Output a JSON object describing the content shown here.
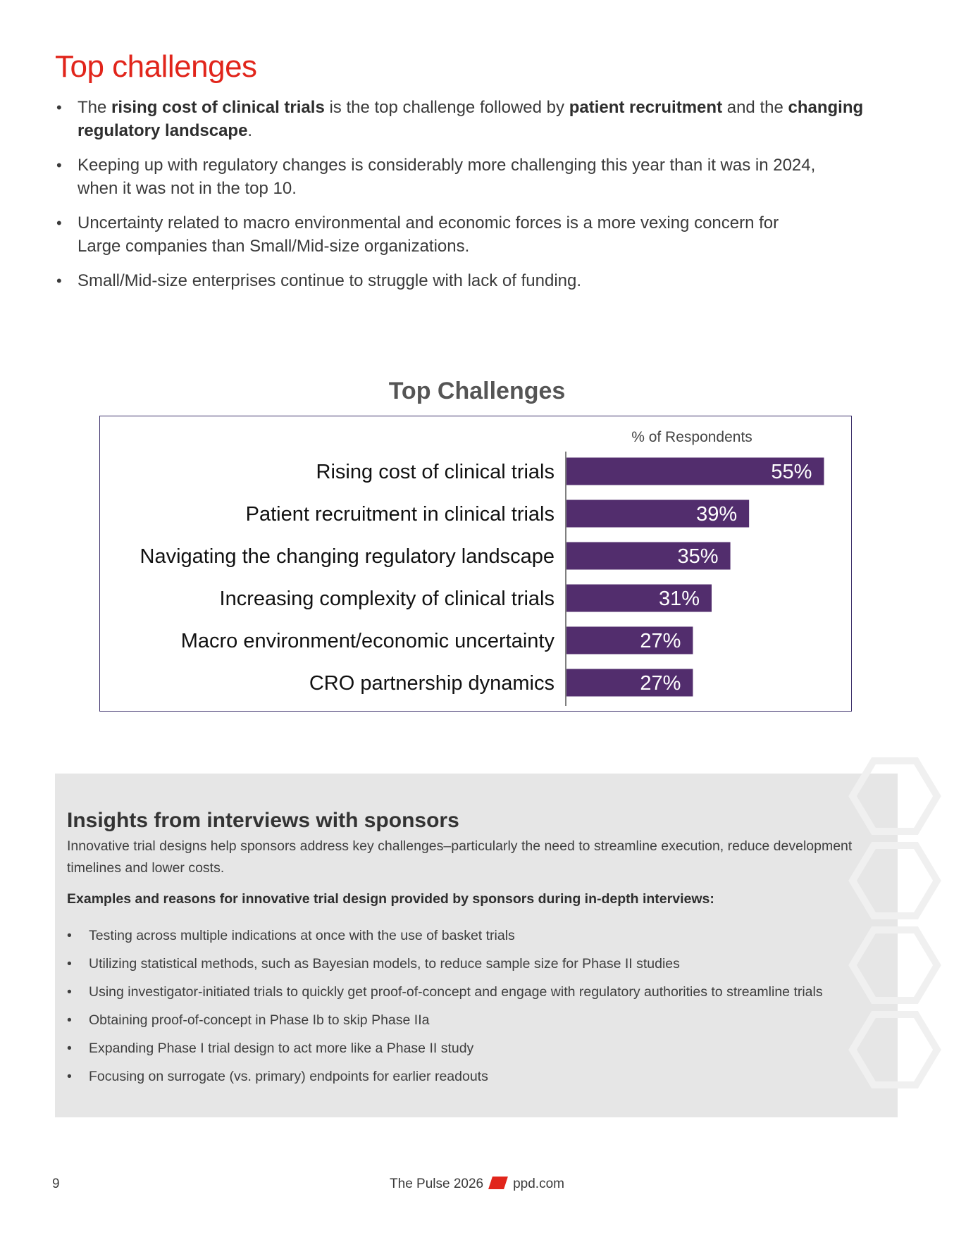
{
  "page": {
    "title": "Top challenges",
    "bullets": [
      {
        "parts": [
          {
            "text": "The "
          },
          {
            "text": "rising cost of clinical trials",
            "bold": true
          },
          {
            "text": " is the top challenge followed by "
          },
          {
            "text": "patient recruitment",
            "bold": true
          },
          {
            "text": " and the "
          },
          {
            "text": "changing regulatory landscape",
            "bold": true
          },
          {
            "text": "."
          }
        ]
      },
      {
        "parts": [
          {
            "text": "Keeping up with regulatory changes is considerably more challenging this year than it was in 2024, when it was not in the top 10."
          }
        ]
      },
      {
        "parts": [
          {
            "text": "Uncertainty related to macro environmental and economic forces is a more vexing concern for Large companies than Small/Mid-size organizations."
          }
        ]
      },
      {
        "parts": [
          {
            "text": "Small/Mid-size enterprises continue to struggle with lack of funding."
          }
        ]
      }
    ]
  },
  "chart_data": {
    "type": "bar",
    "orientation": "horizontal",
    "title": "Top Challenges",
    "xlabel": "% of Respondents",
    "categories": [
      "Rising cost of clinical trials",
      "Patient recruitment in clinical trials",
      "Navigating the changing regulatory landscape",
      "Increasing complexity of clinical trials",
      "Macro environment/economic uncertainty",
      "CRO partnership dynamics"
    ],
    "values": [
      55,
      39,
      35,
      31,
      27,
      27
    ],
    "value_labels": [
      "55%",
      "39%",
      "35%",
      "31%",
      "27%",
      "27%"
    ],
    "xlim": [
      0,
      62
    ],
    "bar_color": "#522d6d",
    "label_color": "#ffffff",
    "grid": false,
    "legend": "none"
  },
  "insights": {
    "title": "Insights from interviews with sponsors",
    "text": "Innovative trial designs help sponsors address key challenges–particularly the need to streamline execution, reduce development timelines and lower costs.",
    "subtitle": "Examples and reasons for innovative trial design provided by sponsors during in-depth interviews:",
    "items": [
      "Testing across multiple indications at once with the use of basket trials",
      "Utilizing statistical methods, such as Bayesian models, to reduce sample size for Phase II studies",
      "Using investigator-initiated trials to quickly get proof-of-concept and engage with regulatory authorities to streamline trials",
      "Obtaining proof-of-concept in Phase Ib to skip Phase IIa",
      "Expanding Phase I trial design to act more like a Phase II study",
      "Focusing on surrogate (vs. primary) endpoints for earlier readouts"
    ]
  },
  "footer": {
    "page_number": "9",
    "publication": "The Pulse 2026",
    "site": "ppd.com",
    "accent_color": "#e1251b"
  }
}
